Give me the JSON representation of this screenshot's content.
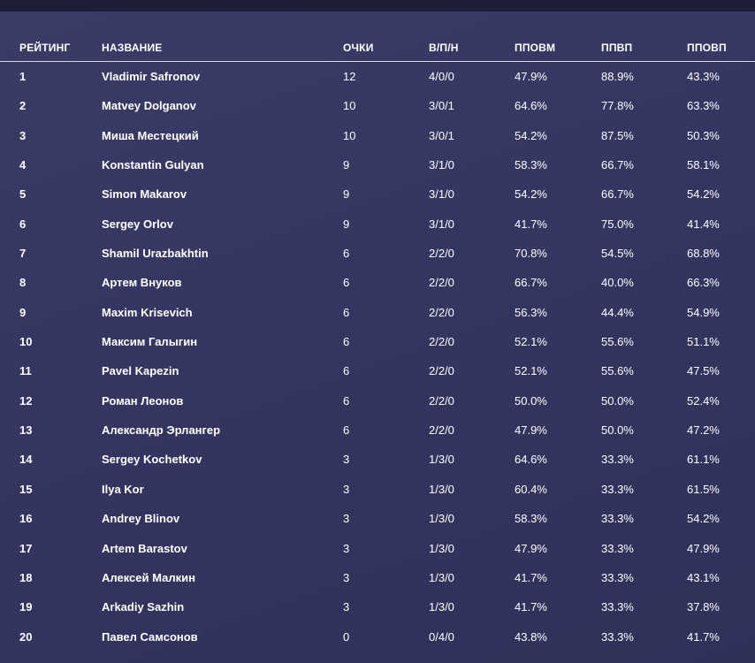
{
  "table": {
    "headers": {
      "rank": "РЕЙТИНГ",
      "name": "НАЗВАНИЕ",
      "points": "ОЧКИ",
      "wdl": "В/П/Н",
      "ppovm": "ППОВМ",
      "ppvp": "ППВП",
      "ppovp": "ППОВП"
    },
    "rows": [
      {
        "rank": "1",
        "name": "Vladimir Safronov",
        "points": "12",
        "wdl": "4/0/0",
        "ppovm": "47.9%",
        "ppvp": "88.9%",
        "ppovp": "43.3%"
      },
      {
        "rank": "2",
        "name": "Matvey Dolganov",
        "points": "10",
        "wdl": "3/0/1",
        "ppovm": "64.6%",
        "ppvp": "77.8%",
        "ppovp": "63.3%"
      },
      {
        "rank": "3",
        "name": "Миша Местецкий",
        "points": "10",
        "wdl": "3/0/1",
        "ppovm": "54.2%",
        "ppvp": "87.5%",
        "ppovp": "50.3%"
      },
      {
        "rank": "4",
        "name": "Konstantin Gulyan",
        "points": "9",
        "wdl": "3/1/0",
        "ppovm": "58.3%",
        "ppvp": "66.7%",
        "ppovp": "58.1%"
      },
      {
        "rank": "5",
        "name": "Simon Makarov",
        "points": "9",
        "wdl": "3/1/0",
        "ppovm": "54.2%",
        "ppvp": "66.7%",
        "ppovp": "54.2%"
      },
      {
        "rank": "6",
        "name": "Sergey Orlov",
        "points": "9",
        "wdl": "3/1/0",
        "ppovm": "41.7%",
        "ppvp": "75.0%",
        "ppovp": "41.4%"
      },
      {
        "rank": "7",
        "name": "Shamil Urazbakhtin",
        "points": "6",
        "wdl": "2/2/0",
        "ppovm": "70.8%",
        "ppvp": "54.5%",
        "ppovp": "68.8%"
      },
      {
        "rank": "8",
        "name": "Артем Внуков",
        "points": "6",
        "wdl": "2/2/0",
        "ppovm": "66.7%",
        "ppvp": "40.0%",
        "ppovp": "66.3%"
      },
      {
        "rank": "9",
        "name": "Maxim Krisevich",
        "points": "6",
        "wdl": "2/2/0",
        "ppovm": "56.3%",
        "ppvp": "44.4%",
        "ppovp": "54.9%"
      },
      {
        "rank": "10",
        "name": "Максим Галыгин",
        "points": "6",
        "wdl": "2/2/0",
        "ppovm": "52.1%",
        "ppvp": "55.6%",
        "ppovp": "51.1%"
      },
      {
        "rank": "11",
        "name": "Pavel Kapezin",
        "points": "6",
        "wdl": "2/2/0",
        "ppovm": "52.1%",
        "ppvp": "55.6%",
        "ppovp": "47.5%"
      },
      {
        "rank": "12",
        "name": "Роман Леонов",
        "points": "6",
        "wdl": "2/2/0",
        "ppovm": "50.0%",
        "ppvp": "50.0%",
        "ppovp": "52.4%"
      },
      {
        "rank": "13",
        "name": "Александр Эрлангер",
        "points": "6",
        "wdl": "2/2/0",
        "ppovm": "47.9%",
        "ppvp": "50.0%",
        "ppovp": "47.2%"
      },
      {
        "rank": "14",
        "name": "Sergey Kochetkov",
        "points": "3",
        "wdl": "1/3/0",
        "ppovm": "64.6%",
        "ppvp": "33.3%",
        "ppovp": "61.1%"
      },
      {
        "rank": "15",
        "name": "Ilya Kor",
        "points": "3",
        "wdl": "1/3/0",
        "ppovm": "60.4%",
        "ppvp": "33.3%",
        "ppovp": "61.5%"
      },
      {
        "rank": "16",
        "name": "Andrey Blinov",
        "points": "3",
        "wdl": "1/3/0",
        "ppovm": "58.3%",
        "ppvp": "33.3%",
        "ppovp": "54.2%"
      },
      {
        "rank": "17",
        "name": "Artem Barastov",
        "points": "3",
        "wdl": "1/3/0",
        "ppovm": "47.9%",
        "ppvp": "33.3%",
        "ppovp": "47.9%"
      },
      {
        "rank": "18",
        "name": "Алексей Малкин",
        "points": "3",
        "wdl": "1/3/0",
        "ppovm": "41.7%",
        "ppvp": "33.3%",
        "ppovp": "43.1%"
      },
      {
        "rank": "19",
        "name": "Arkadiy Sazhin",
        "points": "3",
        "wdl": "1/3/0",
        "ppovm": "41.7%",
        "ppvp": "33.3%",
        "ppovp": "37.8%"
      },
      {
        "rank": "20",
        "name": "Павел Самсонов",
        "points": "0",
        "wdl": "0/4/0",
        "ppovm": "43.8%",
        "ppvp": "33.3%",
        "ppovp": "41.7%"
      }
    ]
  },
  "colors": {
    "background": "#363862",
    "top_bar": "#1d1e38",
    "text": "#ffffff",
    "header_divider": "#d8d8e6"
  }
}
